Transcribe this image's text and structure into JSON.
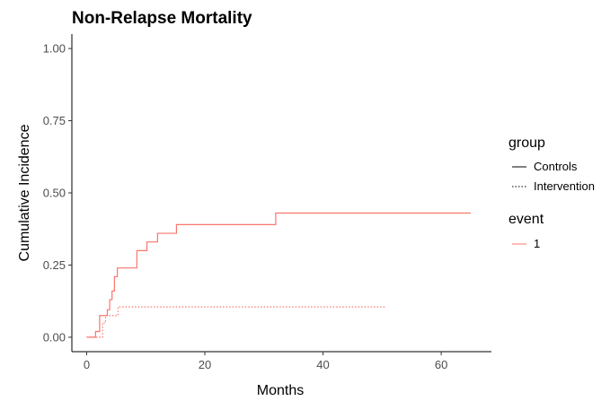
{
  "chart_data": {
    "type": "line",
    "title": "Non-Relapse Mortality",
    "xlabel": "Months",
    "ylabel": "Cumulative Incidence",
    "xlim": [
      -2.5,
      68.5
    ],
    "ylim": [
      -0.05,
      1.05
    ],
    "x_ticks": [
      0,
      20,
      40,
      60
    ],
    "y_ticks": [
      0.0,
      0.25,
      0.5,
      0.75,
      1.0
    ],
    "x_tick_labels": [
      "0",
      "20",
      "40",
      "60"
    ],
    "y_tick_labels": [
      "0.00",
      "0.25",
      "0.50",
      "0.75",
      "1.00"
    ],
    "grid": false,
    "step": true,
    "line_color": "#F8766D",
    "legend_position": "right",
    "legend": {
      "group_title": "group",
      "group_entries": [
        {
          "label": "Controls",
          "linestyle": "solid"
        },
        {
          "label": "Intervention",
          "linestyle": "dotted"
        }
      ],
      "event_title": "event",
      "event_entries": [
        {
          "label": "1",
          "color": "#F8766D"
        }
      ]
    },
    "series": [
      {
        "group": "Controls",
        "event": "1",
        "linestyle": "solid",
        "x": [
          0,
          1.5,
          2.2,
          3.5,
          3.9,
          4.3,
          4.7,
          5.2,
          5.7,
          8.5,
          10.2,
          12.0,
          15.2,
          32.0,
          65.0
        ],
        "y": [
          0.0,
          0.02,
          0.075,
          0.095,
          0.13,
          0.16,
          0.21,
          0.24,
          0.24,
          0.3,
          0.33,
          0.36,
          0.39,
          0.43,
          0.43
        ]
      },
      {
        "group": "Intervention",
        "event": "1",
        "linestyle": "dotted",
        "x": [
          0,
          2.7,
          3.2,
          5.3,
          50.5
        ],
        "y": [
          0.0,
          0.05,
          0.075,
          0.105,
          0.105
        ]
      }
    ]
  }
}
